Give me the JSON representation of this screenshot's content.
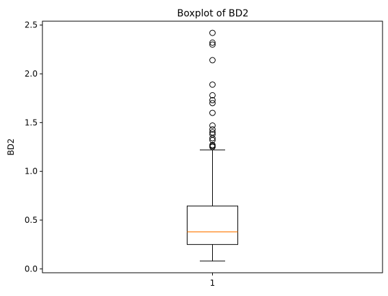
{
  "chart_data": {
    "type": "boxplot",
    "title": "Boxplot of BD2",
    "xlabel": "",
    "ylabel": "BD2",
    "categories": [
      "1"
    ],
    "ylim": [
      -0.04,
      2.54
    ],
    "yticks": [
      0.0,
      0.5,
      1.0,
      1.5,
      2.0,
      2.5
    ],
    "ytick_labels": [
      "0.0",
      "0.5",
      "1.0",
      "1.5",
      "2.0",
      "2.5"
    ],
    "box": {
      "whisker_low": 0.08,
      "q1": 0.25,
      "median": 0.38,
      "q3": 0.645,
      "whisker_high": 1.22
    },
    "outliers": [
      2.42,
      2.32,
      2.3,
      2.14,
      1.89,
      1.78,
      1.73,
      1.7,
      1.6,
      1.47,
      1.43,
      1.4,
      1.38,
      1.34,
      1.32,
      1.27,
      1.26,
      1.25
    ],
    "grid": false,
    "colors": {
      "box": "#000000",
      "median": "#ff7f0e",
      "outlier_edge": "#000000"
    }
  }
}
